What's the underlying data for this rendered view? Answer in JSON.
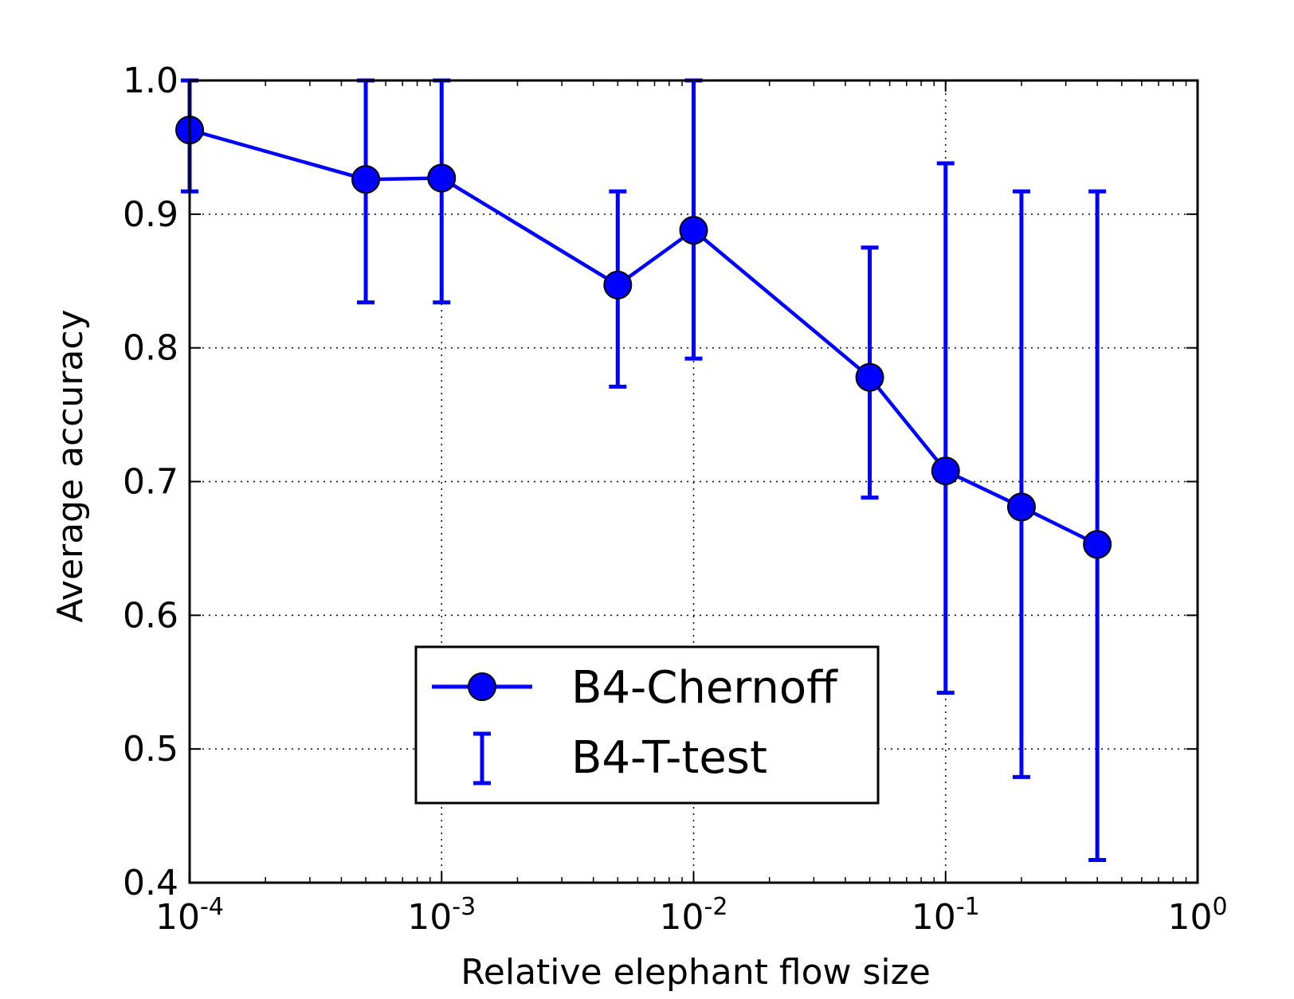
{
  "chart_data": {
    "type": "line",
    "x_scale": "log",
    "xlim": [
      0.0001,
      1
    ],
    "ylim": [
      0.4,
      1.0
    ],
    "grid": true,
    "xlabel": "Relative elephant flow size",
    "ylabel": "Average accuracy",
    "x_ticks": [
      {
        "value": 0.0001,
        "base": "10",
        "exp": "-4"
      },
      {
        "value": 0.001,
        "base": "10",
        "exp": "-3"
      },
      {
        "value": 0.01,
        "base": "10",
        "exp": "-2"
      },
      {
        "value": 0.1,
        "base": "10",
        "exp": "-1"
      },
      {
        "value": 1,
        "base": "10",
        "exp": "0"
      }
    ],
    "y_ticks": [
      {
        "value": 0.4,
        "label": "0.4"
      },
      {
        "value": 0.5,
        "label": "0.5"
      },
      {
        "value": 0.6,
        "label": "0.6"
      },
      {
        "value": 0.7,
        "label": "0.7"
      },
      {
        "value": 0.8,
        "label": "0.8"
      },
      {
        "value": 0.9,
        "label": "0.9"
      },
      {
        "value": 1.0,
        "label": "1.0"
      }
    ],
    "series": [
      {
        "name": "B4-Chernoff",
        "kind": "line-marker",
        "color": "#0000ff",
        "x": [
          0.0001,
          0.0005,
          0.001,
          0.005,
          0.01,
          0.05,
          0.1,
          0.2,
          0.4
        ],
        "y": [
          0.963,
          0.926,
          0.927,
          0.847,
          0.888,
          0.778,
          0.708,
          0.681,
          0.653
        ]
      },
      {
        "name": "B4-T-test",
        "kind": "errorbar",
        "color": "#0000ff",
        "x": [
          0.0001,
          0.0005,
          0.001,
          0.005,
          0.01,
          0.05,
          0.1,
          0.2,
          0.4
        ],
        "low": [
          0.917,
          0.834,
          0.834,
          0.771,
          0.792,
          0.688,
          0.542,
          0.479,
          0.417
        ],
        "high": [
          1.0,
          1.0,
          1.0,
          0.917,
          1.0,
          0.875,
          0.938,
          0.917,
          0.917
        ]
      }
    ],
    "legend": {
      "position": "lower-center"
    }
  }
}
